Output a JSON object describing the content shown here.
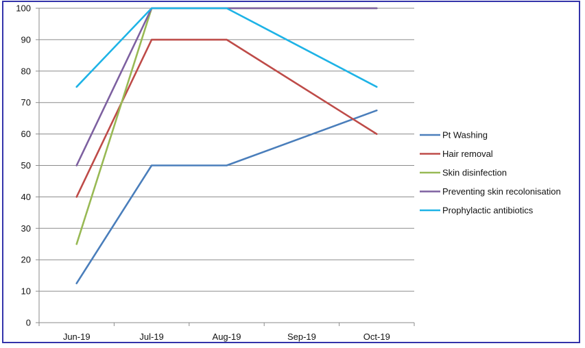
{
  "chart_data": {
    "type": "line",
    "categories": [
      "Jun-19",
      "Jul-19",
      "Aug-19",
      "Sep-19",
      "Oct-19"
    ],
    "ylim": [
      0,
      100
    ],
    "yticks": [
      0,
      10,
      20,
      30,
      40,
      50,
      60,
      70,
      80,
      90,
      100
    ],
    "grid": true,
    "legend_position": "right",
    "series": [
      {
        "name": "Pt Washing",
        "color": "#4a7ebb",
        "values": [
          12.5,
          50,
          50,
          null,
          67.5
        ]
      },
      {
        "name": "Hair removal",
        "color": "#be4b48",
        "values": [
          40,
          90,
          90,
          null,
          60
        ]
      },
      {
        "name": "Skin disinfection",
        "color": "#98b954",
        "values": [
          25,
          100,
          100,
          null,
          100
        ]
      },
      {
        "name": "Preventing skin recolonisation",
        "color": "#7d60a0",
        "values": [
          50,
          100,
          100,
          null,
          100
        ]
      },
      {
        "name": "Prophylactic antibiotics",
        "color": "#1eb3e6",
        "values": [
          75,
          100,
          100,
          null,
          75
        ]
      }
    ]
  }
}
